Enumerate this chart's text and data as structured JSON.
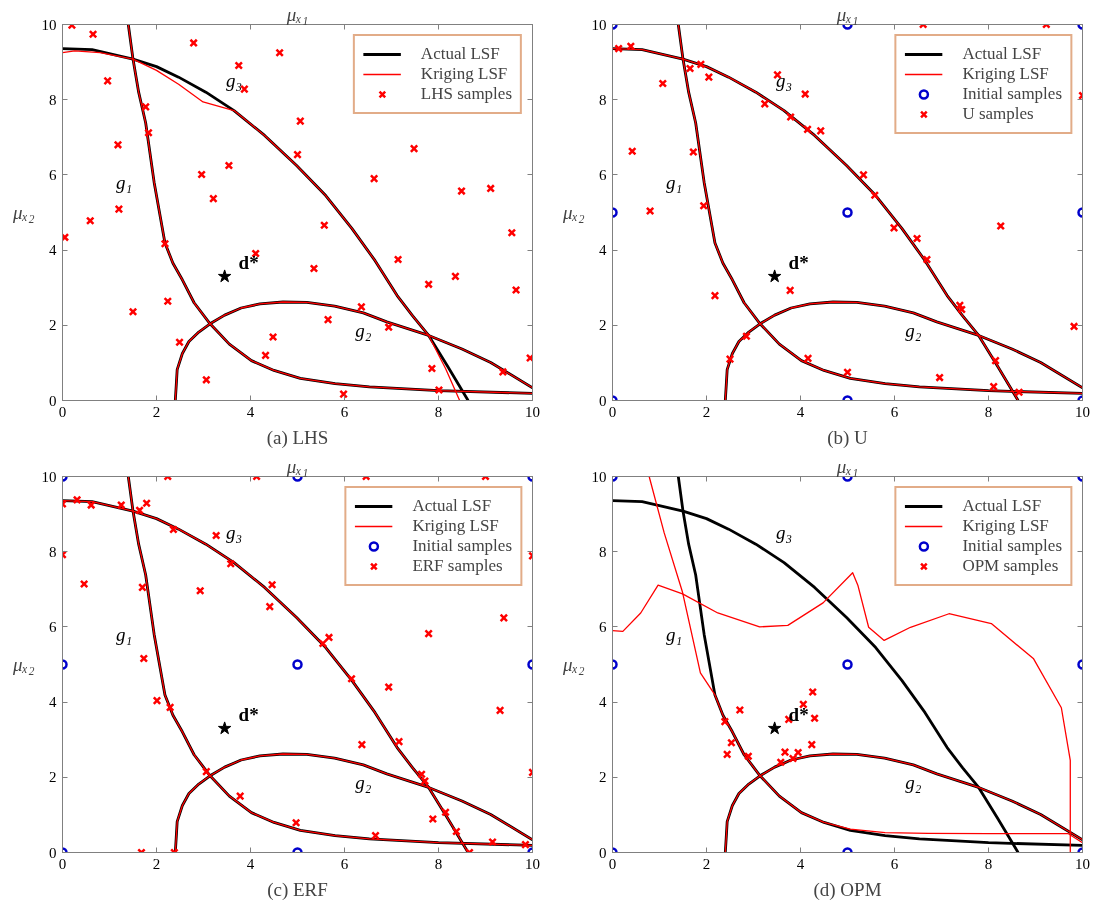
{
  "chart_data": [
    {
      "type": "line",
      "title": "(a) LHS",
      "xlabel": "μₓ₁",
      "ylabel": "μₓ₂",
      "xlim": [
        0,
        10
      ],
      "ylim": [
        0,
        10
      ],
      "xticks": [
        0,
        2,
        4,
        6,
        8,
        10
      ],
      "yticks": [
        0,
        2,
        4,
        6,
        8,
        10
      ],
      "legend": "top right",
      "series": [
        {
          "name": "Actual LSF",
          "color": "#000000",
          "x": [
            1.4,
            1.5,
            1.62,
            1.77,
            1.95,
            2.18,
            2.35,
            2.55,
            2.8,
            3.14,
            3.55,
            4.02,
            4.5,
            5.06,
            5.8,
            6.53,
            8.0,
            10
          ],
          "values": [
            10,
            9.08,
            8.2,
            7.38,
            5.8,
            4.19,
            3.65,
            3.21,
            2.6,
            2.04,
            1.5,
            1.06,
            0.8,
            0.59,
            0.45,
            0.36,
            0.26,
            0.19
          ]
        },
        {
          "color": "#000000",
          "x": [
            2.4,
            2.42,
            2.44,
            2.55,
            2.69,
            2.9,
            3.14,
            3.45,
            3.8,
            4.2,
            4.69,
            5.2,
            5.79,
            6.4,
            6.9,
            7.79,
            8.5,
            9.11,
            10
          ],
          "values": [
            0,
            0.4,
            0.82,
            1.25,
            1.57,
            1.82,
            2.04,
            2.27,
            2.46,
            2.57,
            2.62,
            2.61,
            2.51,
            2.33,
            2.09,
            1.73,
            1.37,
            1.01,
            0.34
          ]
        },
        {
          "color": "#000000",
          "x": [
            0,
            0.63,
            1.5,
            2.0,
            2.47,
            3.05,
            3.65,
            4.3,
            4.98,
            5.6,
            6.16,
            6.65,
            7.12,
            7.45,
            7.79,
            8.2,
            8.63
          ],
          "values": [
            9.36,
            9.33,
            9.08,
            8.88,
            8.6,
            8.2,
            7.71,
            7.05,
            6.25,
            5.45,
            4.57,
            3.72,
            2.79,
            2.25,
            1.73,
            0.9,
            0
          ]
        },
        {
          "name": "Kriging LSF",
          "color": "#ff0000",
          "x": [
            1.4,
            1.5,
            1.62,
            1.77,
            1.95,
            2.18,
            2.35,
            2.55,
            2.8,
            3.14,
            3.55,
            4.02,
            4.5,
            5.06,
            5.8,
            6.53,
            8.0,
            10
          ],
          "values": [
            10,
            9.08,
            8.2,
            7.38,
            5.8,
            4.19,
            3.65,
            3.21,
            2.6,
            2.04,
            1.5,
            1.06,
            0.8,
            0.59,
            0.45,
            0.36,
            0.26,
            0.19
          ]
        },
        {
          "color": "#ff0000",
          "x": [
            2.4,
            2.42,
            2.44,
            2.55,
            2.69,
            2.9,
            3.14,
            3.45,
            3.8,
            4.2,
            4.69,
            5.2,
            5.79,
            6.4,
            6.9,
            7.79,
            8.5,
            9.11,
            10
          ],
          "values": [
            0,
            0.4,
            0.82,
            1.25,
            1.57,
            1.82,
            2.04,
            2.27,
            2.46,
            2.57,
            2.62,
            2.61,
            2.51,
            2.33,
            2.09,
            1.73,
            1.37,
            1.01,
            0.34
          ]
        },
        {
          "color": "#ff0000",
          "x": [
            0,
            0.26,
            0.8,
            1.5,
            2.0,
            2.47,
            2.99,
            3.65,
            4.3,
            4.98,
            5.6,
            6.16,
            6.65,
            7.12,
            7.45,
            7.79,
            8.15,
            8.45
          ],
          "values": [
            9.25,
            9.3,
            9.25,
            9.08,
            8.78,
            8.41,
            7.94,
            7.71,
            7.05,
            6.25,
            5.45,
            4.57,
            3.72,
            2.79,
            2.25,
            1.73,
            0.85,
            0
          ]
        },
        {
          "name": "LHS samples",
          "type": "scatter",
          "marker": "cross",
          "color": "#ff0000",
          "x": [
            0.2,
            0.65,
            2.79,
            4.62,
            3.75,
            3.87,
            0.96,
            1.77,
            1.83,
            5.06,
            1.18,
            7.48,
            5.0,
            3.54,
            2.96,
            6.63,
            8.49,
            9.11,
            3.21,
            1.2,
            0.59,
            0.05,
            5.57,
            9.56,
            2.18,
            4.11,
            7.14,
            5.35,
            8.36,
            7.79,
            9.65,
            2.24,
            1.5,
            6.36,
            5.65,
            6.94,
            4.48,
            2.49,
            4.32,
            9.95,
            7.86,
            9.37,
            3.06,
            8.01,
            5.98
          ],
          "values": [
            9.98,
            9.74,
            9.51,
            9.25,
            8.91,
            8.28,
            8.5,
            7.81,
            7.12,
            7.43,
            6.8,
            6.7,
            6.54,
            6.25,
            6.01,
            5.9,
            5.57,
            5.64,
            5.37,
            5.09,
            4.78,
            4.34,
            4.66,
            4.46,
            4.17,
            3.91,
            3.75,
            3.51,
            3.3,
            3.09,
            2.94,
            2.64,
            2.36,
            2.49,
            2.15,
            1.95,
            1.69,
            1.55,
            1.2,
            1.13,
            0.85,
            0.76,
            0.55,
            0.28,
            0.17
          ]
        },
        {
          "type": "scatter",
          "marker": "star",
          "color": "#000000",
          "x": [
            3.45
          ],
          "values": [
            3.3
          ]
        }
      ],
      "annotations": [
        "g₁",
        "g₂",
        "g₃",
        "d*"
      ]
    },
    {
      "type": "line",
      "title": "(b) U",
      "xlabel": "μₓ₁",
      "ylabel": "μₓ₂",
      "xlim": [
        0,
        10
      ],
      "ylim": [
        0,
        10
      ],
      "xticks": [
        0,
        2,
        4,
        6,
        8,
        10
      ],
      "yticks": [
        0,
        2,
        4,
        6,
        8,
        10
      ],
      "legend": "top right",
      "series": [
        {
          "name": "Actual LSF",
          "color": "#000000",
          "x": [
            1.4,
            1.5,
            1.62,
            1.77,
            1.95,
            2.18,
            2.35,
            2.55,
            2.8,
            3.14,
            3.55,
            4.02,
            4.5,
            5.06,
            5.8,
            6.53,
            8.0,
            10
          ],
          "values": [
            10,
            9.08,
            8.2,
            7.38,
            5.8,
            4.19,
            3.65,
            3.21,
            2.6,
            2.04,
            1.5,
            1.06,
            0.8,
            0.59,
            0.45,
            0.36,
            0.26,
            0.19
          ]
        },
        {
          "color": "#000000",
          "x": [
            2.4,
            2.42,
            2.44,
            2.55,
            2.69,
            2.9,
            3.14,
            3.45,
            3.8,
            4.2,
            4.69,
            5.2,
            5.79,
            6.4,
            6.9,
            7.79,
            8.5,
            9.11,
            10
          ],
          "values": [
            0,
            0.4,
            0.82,
            1.25,
            1.57,
            1.82,
            2.04,
            2.27,
            2.46,
            2.57,
            2.62,
            2.61,
            2.51,
            2.33,
            2.09,
            1.73,
            1.37,
            1.01,
            0.34
          ]
        },
        {
          "color": "#000000",
          "x": [
            0,
            0.63,
            1.5,
            2.0,
            2.47,
            3.05,
            3.65,
            4.3,
            4.98,
            5.6,
            6.16,
            6.65,
            7.12,
            7.45,
            7.79,
            8.2,
            8.63
          ],
          "values": [
            9.36,
            9.33,
            9.08,
            8.88,
            8.6,
            8.2,
            7.71,
            7.05,
            6.25,
            5.45,
            4.57,
            3.72,
            2.79,
            2.25,
            1.73,
            0.9,
            0
          ]
        },
        {
          "name": "Kriging LSF",
          "color": "#ff0000",
          "x": [
            1.4,
            1.5,
            1.62,
            1.77,
            1.95,
            2.18,
            2.35,
            2.55,
            2.8,
            3.14,
            3.55,
            4.02,
            4.5,
            5.06,
            5.8,
            6.53,
            8.0,
            10
          ],
          "values": [
            10,
            9.08,
            8.2,
            7.38,
            5.8,
            4.19,
            3.65,
            3.21,
            2.6,
            2.04,
            1.5,
            1.06,
            0.8,
            0.59,
            0.45,
            0.36,
            0.26,
            0.19
          ]
        },
        {
          "color": "#ff0000",
          "x": [
            2.4,
            2.42,
            2.44,
            2.55,
            2.69,
            2.9,
            3.14,
            3.45,
            3.8,
            4.2,
            4.69,
            5.2,
            5.79,
            6.4,
            6.9,
            7.79,
            8.5,
            9.11,
            10
          ],
          "values": [
            0,
            0.4,
            0.82,
            1.25,
            1.57,
            1.82,
            2.04,
            2.27,
            2.46,
            2.57,
            2.62,
            2.61,
            2.51,
            2.33,
            2.09,
            1.73,
            1.37,
            1.01,
            0.34
          ]
        },
        {
          "color": "#ff0000",
          "x": [
            0,
            0.63,
            1.5,
            2.0,
            2.47,
            3.05,
            3.65,
            4.3,
            4.98,
            5.6,
            6.16,
            6.65,
            7.12,
            7.45,
            7.79,
            8.2,
            8.63
          ],
          "values": [
            9.36,
            9.33,
            9.08,
            8.88,
            8.6,
            8.2,
            7.71,
            7.05,
            6.25,
            5.45,
            4.57,
            3.72,
            2.79,
            2.25,
            1.73,
            0.9,
            0
          ]
        },
        {
          "name": "Initial samples",
          "type": "scatter",
          "marker": "circle",
          "color": "#0000cc",
          "x": [
            0,
            5,
            10,
            0,
            5,
            10,
            0,
            5,
            10
          ],
          "values": [
            0,
            0,
            0,
            5,
            5,
            5,
            10,
            10,
            10
          ]
        },
        {
          "name": "U samples",
          "type": "scatter",
          "marker": "cross",
          "color": "#ff0000",
          "x": [
            6.61,
            9.23,
            0.13,
            0.39,
            1.65,
            1.88,
            2.05,
            1.07,
            3.51,
            4.1,
            10,
            3.24,
            3.79,
            4.15,
            4.43,
            0.42,
            1.72,
            5.34,
            5.58,
            0.8,
            1.94,
            5.99,
            8.26,
            6.48,
            6.69,
            3.78,
            2.18,
            7.39,
            7.43,
            9.82,
            2.85,
            2.5,
            4.16,
            8.15,
            5.0,
            6.96,
            8.11,
            8.65
          ],
          "values": [
            10,
            10,
            9.36,
            9.42,
            8.83,
            8.94,
            8.6,
            8.43,
            8.66,
            8.15,
            8.11,
            7.89,
            7.54,
            7.21,
            7.17,
            6.63,
            6.61,
            6.0,
            5.46,
            5.04,
            5.18,
            4.59,
            4.64,
            4.31,
            3.75,
            2.93,
            2.79,
            2.53,
            2.42,
            1.97,
            1.71,
            1.1,
            1.12,
            1.06,
            0.75,
            0.61,
            0.37,
            0.22
          ]
        },
        {
          "type": "scatter",
          "marker": "star",
          "color": "#000000",
          "x": [
            3.45
          ],
          "values": [
            3.3
          ]
        }
      ],
      "annotations": [
        "g₁",
        "g₂",
        "g₃",
        "d*"
      ]
    },
    {
      "type": "line",
      "title": "(c) ERF",
      "xlabel": "μₓ₁",
      "ylabel": "μₓ₂",
      "xlim": [
        0,
        10
      ],
      "ylim": [
        0,
        10
      ],
      "xticks": [
        0,
        2,
        4,
        6,
        8,
        10
      ],
      "yticks": [
        0,
        2,
        4,
        6,
        8,
        10
      ],
      "legend": "top right",
      "series": [
        {
          "name": "Actual LSF",
          "color": "#000000",
          "x": [
            1.4,
            1.5,
            1.62,
            1.77,
            1.95,
            2.18,
            2.35,
            2.55,
            2.8,
            3.14,
            3.55,
            4.02,
            4.5,
            5.06,
            5.8,
            6.53,
            8.0,
            10
          ],
          "values": [
            10,
            9.08,
            8.2,
            7.38,
            5.8,
            4.19,
            3.65,
            3.21,
            2.6,
            2.04,
            1.5,
            1.06,
            0.8,
            0.59,
            0.45,
            0.36,
            0.26,
            0.19
          ]
        },
        {
          "color": "#000000",
          "x": [
            2.4,
            2.42,
            2.44,
            2.55,
            2.69,
            2.9,
            3.14,
            3.45,
            3.8,
            4.2,
            4.69,
            5.2,
            5.79,
            6.4,
            6.9,
            7.79,
            8.5,
            9.11,
            10
          ],
          "values": [
            0,
            0.4,
            0.82,
            1.25,
            1.57,
            1.82,
            2.04,
            2.27,
            2.46,
            2.57,
            2.62,
            2.61,
            2.51,
            2.33,
            2.09,
            1.73,
            1.37,
            1.01,
            0.34
          ]
        },
        {
          "color": "#000000",
          "x": [
            0,
            0.63,
            1.5,
            2.0,
            2.47,
            3.05,
            3.65,
            4.3,
            4.98,
            5.6,
            6.16,
            6.65,
            7.12,
            7.45,
            7.79,
            8.2,
            8.63
          ],
          "values": [
            9.36,
            9.33,
            9.08,
            8.88,
            8.6,
            8.2,
            7.71,
            7.05,
            6.25,
            5.45,
            4.57,
            3.72,
            2.79,
            2.25,
            1.73,
            0.9,
            0
          ]
        },
        {
          "name": "Kriging LSF",
          "color": "#ff0000",
          "x": [
            1.4,
            1.5,
            1.62,
            1.77,
            1.95,
            2.18,
            2.35,
            2.55,
            2.8,
            3.14,
            3.55,
            4.02,
            4.5,
            5.06,
            5.8,
            6.53,
            8.0,
            10
          ],
          "values": [
            10,
            9.08,
            8.2,
            7.38,
            5.8,
            4.19,
            3.65,
            3.21,
            2.6,
            2.04,
            1.5,
            1.06,
            0.8,
            0.59,
            0.45,
            0.36,
            0.26,
            0.19
          ]
        },
        {
          "color": "#ff0000",
          "x": [
            2.4,
            2.42,
            2.44,
            2.55,
            2.69,
            2.9,
            3.14,
            3.45,
            3.8,
            4.2,
            4.69,
            5.2,
            5.79,
            6.4,
            6.9,
            7.79,
            8.5,
            9.11,
            10
          ],
          "values": [
            0,
            0.4,
            0.82,
            1.25,
            1.57,
            1.82,
            2.04,
            2.27,
            2.46,
            2.57,
            2.62,
            2.61,
            2.51,
            2.33,
            2.09,
            1.73,
            1.37,
            1.01,
            0.34
          ]
        },
        {
          "color": "#ff0000",
          "x": [
            0,
            0.63,
            1.5,
            2.0,
            2.47,
            3.05,
            3.65,
            4.3,
            4.98,
            5.6,
            6.16,
            6.65,
            7.12,
            7.45,
            7.79,
            8.2,
            8.63
          ],
          "values": [
            9.36,
            9.33,
            9.08,
            8.88,
            8.6,
            8.2,
            7.71,
            7.05,
            6.25,
            5.45,
            4.57,
            3.72,
            2.79,
            2.25,
            1.73,
            0.9,
            0
          ]
        },
        {
          "name": "Initial samples",
          "type": "scatter",
          "marker": "circle",
          "color": "#0000cc",
          "x": [
            0,
            5,
            10,
            0,
            5,
            10,
            0,
            5,
            10
          ],
          "values": [
            0,
            0,
            0,
            5,
            5,
            5,
            10,
            10,
            10
          ]
        },
        {
          "name": "ERF samples",
          "type": "scatter",
          "marker": "cross",
          "color": "#ff0000",
          "x": [
            2.24,
            4.13,
            6.46,
            9.0,
            0,
            0.31,
            0.61,
            1.25,
            1.64,
            1.79,
            2.36,
            3.27,
            0,
            10,
            3.58,
            0.46,
            1.7,
            2.93,
            4.46,
            4.41,
            9.39,
            7.79,
            5.54,
            5.67,
            1.73,
            6.15,
            6.94,
            9.31,
            2.01,
            2.29,
            7.16,
            6.37,
            7.64,
            7.71,
            10,
            3.06,
            3.78,
            8.15,
            7.88,
            8.38,
            4.97,
            6.66,
            9.15,
            9.85,
            1.68,
            2.38,
            8.66
          ],
          "values": [
            10,
            10,
            10,
            10,
            9.27,
            9.38,
            9.24,
            9.24,
            9.1,
            9.29,
            8.59,
            8.43,
            7.92,
            7.89,
            7.68,
            7.14,
            7.05,
            6.96,
            7.12,
            6.54,
            6.24,
            5.82,
            5.56,
            5.72,
            5.16,
            4.62,
            4.4,
            3.78,
            4.04,
            3.86,
            2.95,
            2.87,
            2.08,
            1.9,
            2.13,
            2.15,
            1.5,
            1.07,
            0.89,
            0.56,
            0.79,
            0.45,
            0.28,
            0.21,
            0,
            0,
            0
          ]
        },
        {
          "type": "scatter",
          "marker": "star",
          "color": "#000000",
          "x": [
            3.45
          ],
          "values": [
            3.3
          ]
        }
      ],
      "annotations": [
        "g₁",
        "g₂",
        "g₃",
        "d*"
      ]
    },
    {
      "type": "line",
      "title": "(d) OPM",
      "xlabel": "μₓ₁",
      "ylabel": "μₓ₂",
      "xlim": [
        0,
        10
      ],
      "ylim": [
        0,
        10
      ],
      "xticks": [
        0,
        2,
        4,
        6,
        8,
        10
      ],
      "yticks": [
        0,
        2,
        4,
        6,
        8,
        10
      ],
      "legend": "top right",
      "series": [
        {
          "name": "Actual LSF",
          "color": "#000000",
          "x": [
            1.4,
            1.5,
            1.62,
            1.77,
            1.95,
            2.18,
            2.35,
            2.55,
            2.8,
            3.14,
            3.55,
            4.02,
            4.5,
            5.06,
            5.8,
            6.53,
            8.0,
            10
          ],
          "values": [
            10,
            9.08,
            8.2,
            7.38,
            5.8,
            4.19,
            3.65,
            3.21,
            2.6,
            2.04,
            1.5,
            1.06,
            0.8,
            0.59,
            0.45,
            0.36,
            0.26,
            0.19
          ]
        },
        {
          "color": "#000000",
          "x": [
            2.4,
            2.42,
            2.44,
            2.55,
            2.69,
            2.9,
            3.14,
            3.45,
            3.8,
            4.2,
            4.69,
            5.2,
            5.79,
            6.4,
            6.9,
            7.79,
            8.5,
            9.11,
            10
          ],
          "values": [
            0,
            0.4,
            0.82,
            1.25,
            1.57,
            1.82,
            2.04,
            2.27,
            2.46,
            2.57,
            2.62,
            2.61,
            2.51,
            2.33,
            2.09,
            1.73,
            1.37,
            1.01,
            0.34
          ]
        },
        {
          "color": "#000000",
          "x": [
            0,
            0.63,
            1.5,
            2.0,
            2.47,
            3.05,
            3.65,
            4.3,
            4.98,
            5.6,
            6.16,
            6.65,
            7.12,
            7.45,
            7.79,
            8.2,
            8.63
          ],
          "values": [
            9.36,
            9.33,
            9.08,
            8.88,
            8.6,
            8.2,
            7.71,
            7.05,
            6.25,
            5.45,
            4.57,
            3.72,
            2.79,
            2.25,
            1.73,
            0.9,
            0
          ]
        },
        {
          "name": "Kriging LSF",
          "color": "#ff0000",
          "x": [
            0.78,
            1.1,
            1.49,
            1.87,
            2.18,
            2.35,
            2.55,
            2.8,
            3.14,
            3.55,
            4.02,
            4.5,
            5.06,
            5.8,
            6.72,
            8.0,
            9.7,
            10
          ],
          "values": [
            10,
            8.5,
            6.92,
            4.78,
            4.19,
            3.65,
            3.21,
            2.6,
            2.04,
            1.5,
            1.06,
            0.8,
            0.62,
            0.53,
            0.51,
            0.5,
            0.5,
            0.26
          ]
        },
        {
          "color": "#ff0000",
          "x": [
            2.4,
            2.42,
            2.44,
            2.55,
            2.69,
            2.9,
            3.14,
            3.45,
            3.8,
            4.2,
            4.69,
            5.2,
            5.79,
            6.4,
            6.9,
            7.79,
            8.5,
            9.11,
            10
          ],
          "values": [
            0,
            0.4,
            0.82,
            1.25,
            1.57,
            1.82,
            2.04,
            2.27,
            2.46,
            2.57,
            2.62,
            2.61,
            2.51,
            2.33,
            2.09,
            1.73,
            1.37,
            1.01,
            0.34
          ]
        },
        {
          "color": "#ff0000",
          "x": [
            0,
            0.22,
            0.6,
            0.97,
            1.49,
            2.24,
            3.13,
            3.73,
            4.48,
            5.11,
            5.22,
            5.45,
            5.78,
            6.34,
            7.16,
            8.06,
            8.96,
            9.55,
            9.74,
            9.74
          ],
          "values": [
            5.9,
            5.88,
            6.37,
            7.11,
            6.88,
            6.37,
            6.0,
            6.04,
            6.64,
            7.44,
            7.11,
            5.99,
            5.64,
            5.99,
            6.35,
            6.09,
            5.15,
            3.85,
            2.45,
            0
          ]
        },
        {
          "name": "Initial samples",
          "type": "scatter",
          "marker": "circle",
          "color": "#0000cc",
          "x": [
            0,
            5,
            10,
            0,
            5,
            10,
            0,
            5,
            10
          ],
          "values": [
            0,
            0,
            0,
            5,
            5,
            5,
            10,
            10,
            10
          ]
        },
        {
          "name": "OPM samples",
          "type": "scatter",
          "marker": "cross",
          "color": "#ff0000",
          "x": [
            4.26,
            4.06,
            4.3,
            3.75,
            2.71,
            2.39,
            2.53,
            2.44,
            2.89,
            4.24,
            3.67,
            3.95,
            3.58,
            3.84
          ],
          "values": [
            4.27,
            3.94,
            3.57,
            3.54,
            3.79,
            3.48,
            2.92,
            2.61,
            2.56,
            2.87,
            2.67,
            2.66,
            2.4,
            2.5
          ]
        },
        {
          "type": "scatter",
          "marker": "star",
          "color": "#000000",
          "x": [
            3.45
          ],
          "values": [
            3.3
          ]
        }
      ],
      "annotations": [
        "g₁",
        "g₂",
        "g₃",
        "d*"
      ]
    }
  ]
}
